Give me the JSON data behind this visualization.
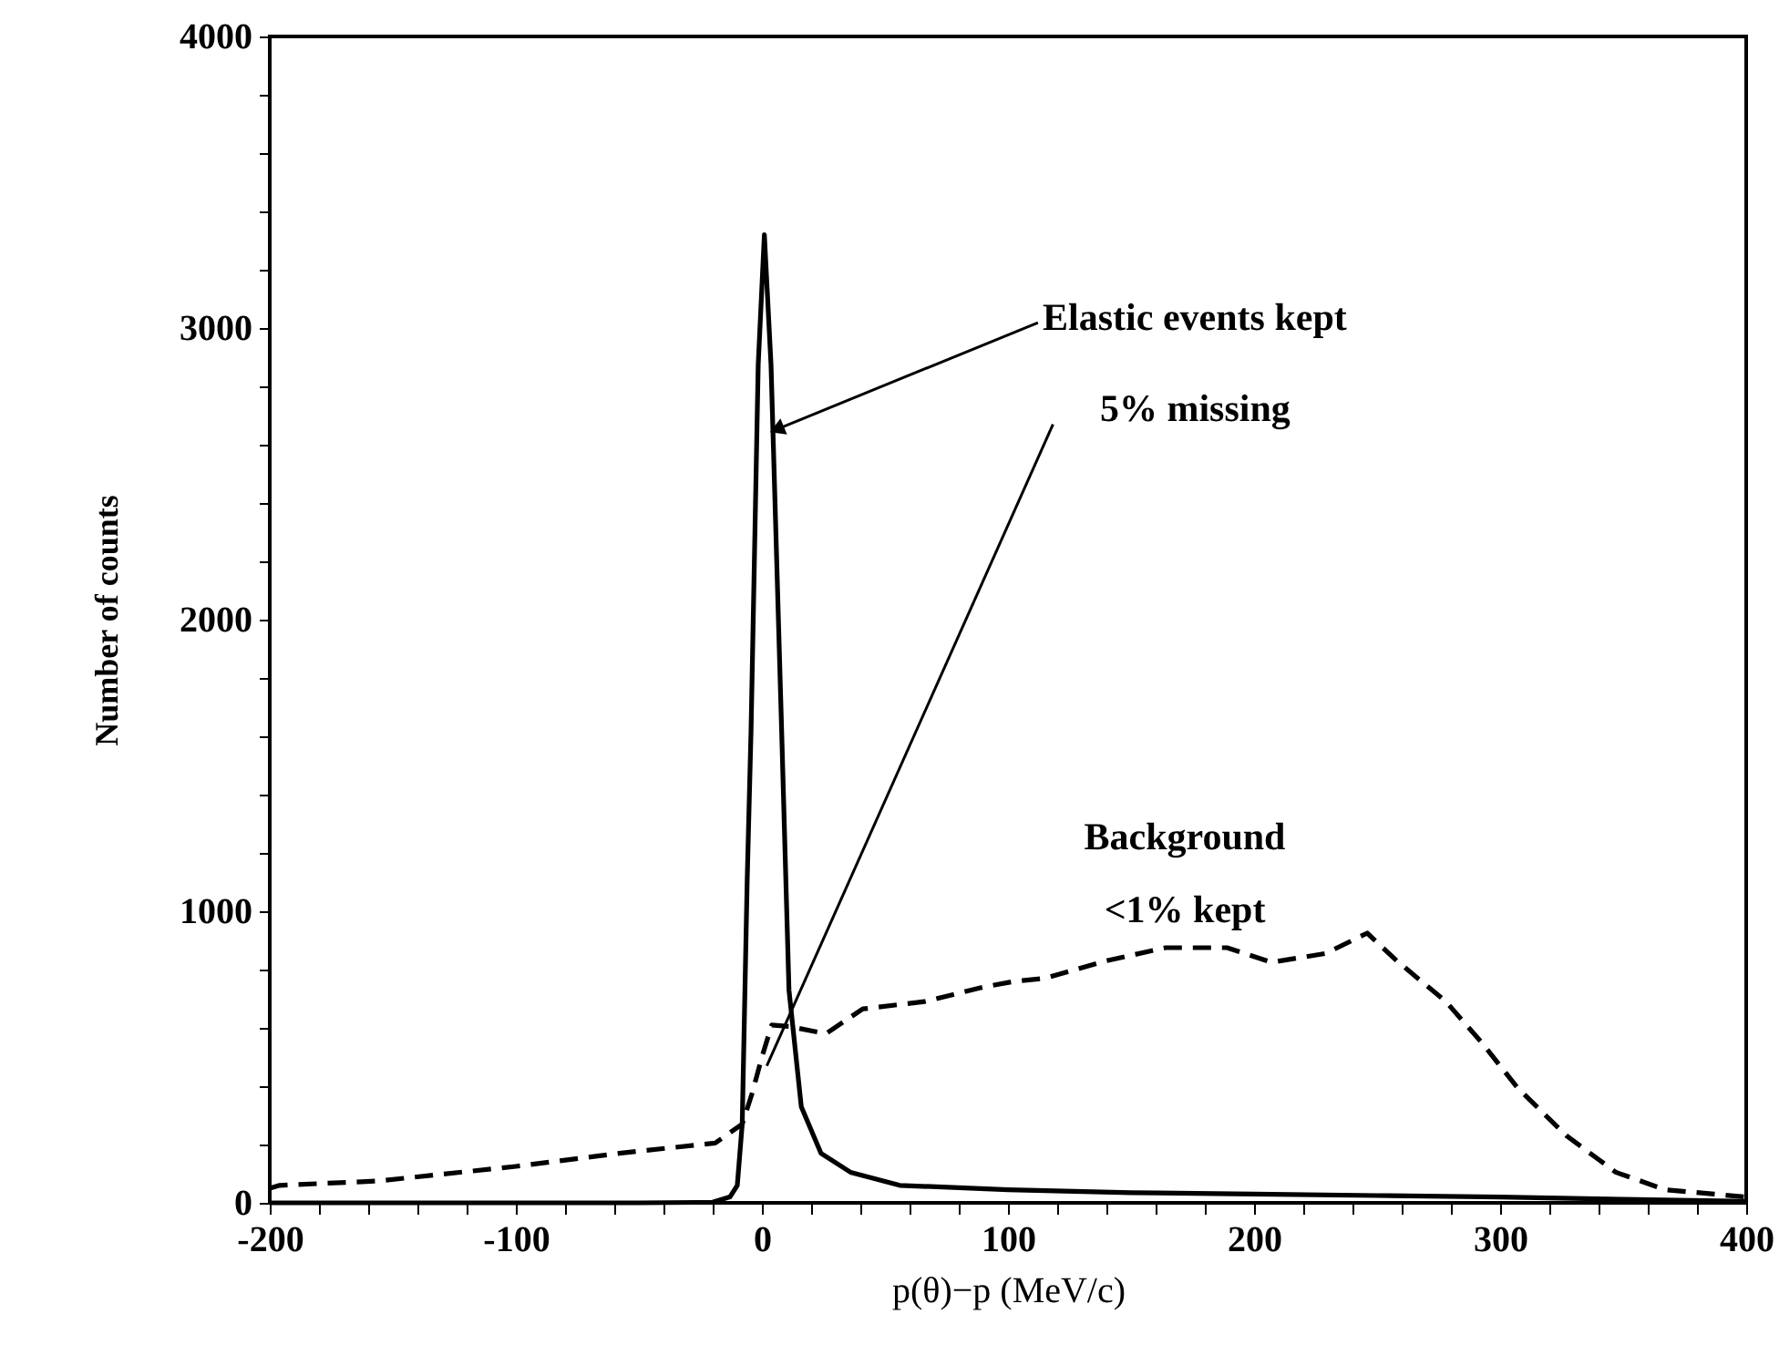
{
  "chart_data": {
    "type": "line",
    "xlabel": "p(θ)−p  (MeV/c)",
    "ylabel": "Number of counts",
    "xlim": [
      -200,
      400
    ],
    "ylim": [
      0,
      4000
    ],
    "xticks": [
      -200,
      {
        "value": -180,
        "label": null
      },
      {
        "value": -160,
        "label": null
      },
      {
        "value": -140,
        "label": null
      },
      {
        "value": -120,
        "label": null
      },
      -100,
      {
        "value": -80,
        "label": null
      },
      {
        "value": -60,
        "label": null
      },
      {
        "value": -40,
        "label": null
      },
      {
        "value": -20,
        "label": null
      },
      0,
      {
        "value": 20,
        "label": null
      },
      {
        "value": 40,
        "label": null
      },
      {
        "value": 60,
        "label": null
      },
      {
        "value": 80,
        "label": null
      },
      100,
      {
        "value": 120,
        "label": null
      },
      {
        "value": 140,
        "label": null
      },
      {
        "value": 160,
        "label": null
      },
      {
        "value": 180,
        "label": null
      },
      200,
      {
        "value": 220,
        "label": null
      },
      {
        "value": 240,
        "label": null
      },
      {
        "value": 260,
        "label": null
      },
      {
        "value": 280,
        "label": null
      },
      300,
      {
        "value": 320,
        "label": null
      },
      {
        "value": 340,
        "label": null
      },
      {
        "value": 360,
        "label": null
      },
      {
        "value": 380,
        "label": null
      },
      400
    ],
    "yticks": [
      0,
      {
        "value": 200,
        "label": null
      },
      {
        "value": 400,
        "label": null
      },
      {
        "value": 600,
        "label": null
      },
      {
        "value": 800,
        "label": null
      },
      1000,
      {
        "value": 1200,
        "label": null
      },
      {
        "value": 1400,
        "label": null
      },
      {
        "value": 1600,
        "label": null
      },
      {
        "value": 1800,
        "label": null
      },
      2000,
      {
        "value": 2200,
        "label": null
      },
      {
        "value": 2400,
        "label": null
      },
      {
        "value": 2600,
        "label": null
      },
      {
        "value": 2800,
        "label": null
      },
      3000,
      {
        "value": 3200,
        "label": null
      },
      {
        "value": 3400,
        "label": null
      },
      {
        "value": 3600,
        "label": null
      },
      {
        "value": 3800,
        "label": null
      },
      4000
    ],
    "grid": false,
    "series": [
      {
        "color": "#000000",
        "line_style": "solid",
        "x": [
          -200,
          -50,
          -20,
          -13,
          -10,
          -8,
          -6,
          -4.4,
          -1.5,
          1,
          3.7,
          8,
          11,
          16,
          24,
          36,
          56,
          100,
          150,
          200,
          250,
          300,
          350,
          400
        ],
        "values": [
          0,
          0,
          2,
          20,
          60,
          270,
          1100,
          1625,
          2875,
          3320,
          2875,
          1625,
          730,
          330,
          170,
          105,
          60,
          45,
          35,
          30,
          25,
          20,
          12,
          5
        ]
      },
      {
        "color": "#000000",
        "line_style": "dashed",
        "x": [
          -200,
          -196,
          -156,
          -100,
          -58,
          -19,
          -8,
          -4,
          0,
          4,
          11,
          26,
          41,
          66,
          90,
          103,
          115,
          140,
          164,
          189,
          207,
          229,
          246,
          258,
          278,
          293,
          307,
          327,
          347,
          367,
          387,
          400
        ],
        "values": [
          50,
          60,
          75,
          125,
          170,
          205,
          270,
          375,
          500,
          610,
          605,
          580,
          665,
          690,
          740,
          760,
          770,
          830,
          875,
          875,
          825,
          855,
          925,
          830,
          690,
          545,
          395,
          230,
          105,
          45,
          30,
          20
        ]
      }
    ],
    "annotations": [
      {
        "text": "Elastic events kept",
        "x": 7,
        "y": 2656
      },
      {
        "text": "5% missing",
        "x": 2,
        "y": 470
      },
      "Background",
      "<1% kept"
    ]
  }
}
